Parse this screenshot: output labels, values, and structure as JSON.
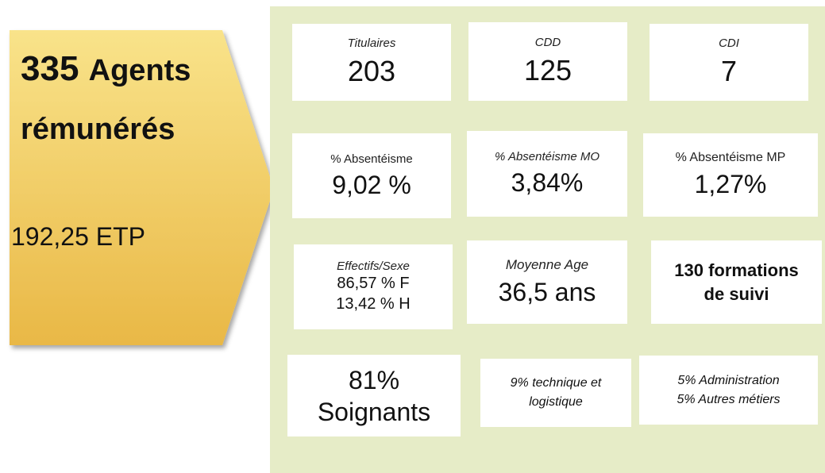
{
  "summary": {
    "count": "335",
    "count_label": "Agents",
    "line2": "rémunérés",
    "etp": "192,25 ETP"
  },
  "cards": [
    {
      "label": "Titulaires",
      "value": "203"
    },
    {
      "label": "CDD",
      "value": "125"
    },
    {
      "label": "CDI",
      "value": "7"
    },
    {
      "label": "% Absentéisme",
      "value": "9,02 %"
    },
    {
      "label": "% Absentéisme MO",
      "value": "3,84%"
    },
    {
      "label": "% Absentéisme MP",
      "value": "1,27%"
    },
    {
      "label": "Effectifs/Sexe",
      "lines": [
        "86,57 % F",
        "13,42 % H"
      ]
    },
    {
      "label": "Moyenne Age",
      "value": "36,5 ans"
    },
    {
      "lines": [
        "130 formations",
        "de suivi"
      ]
    },
    {
      "lines": [
        "81%",
        "Soignants"
      ]
    },
    {
      "lines": [
        "9% technique et",
        "logistique"
      ]
    },
    {
      "lines": [
        "5% Administration",
        "5% Autres métiers"
      ]
    }
  ]
}
